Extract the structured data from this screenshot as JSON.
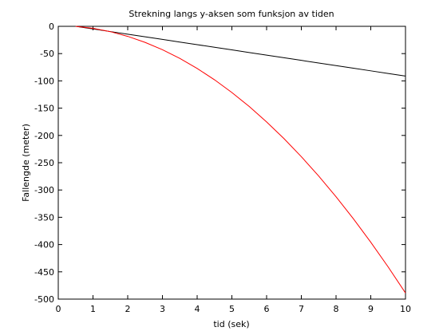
{
  "chart_data": {
    "type": "line",
    "title": "Strekning langs y-aksen som funksjon av tiden",
    "x_label": "tid (sek)",
    "y_label": "Fallengde (meter)",
    "x": [
      0.5,
      1,
      1.5,
      2,
      2.5,
      3,
      3.5,
      4,
      4.5,
      5,
      5.5,
      6,
      6.5,
      7,
      7.5,
      8,
      8.5,
      9,
      9.5,
      10
    ],
    "series": [
      {
        "color": "#000000",
        "values": [
          0,
          -4.8,
          -9.6,
          -14.4,
          -19.2,
          -24,
          -28.8,
          -33.6,
          -38.4,
          -43.2,
          -48,
          -52.8,
          -57.6,
          -62.4,
          -67.2,
          -72,
          -76.8,
          -81.6,
          -86.4,
          -91.2
        ]
      },
      {
        "color": "#ff0000",
        "values": [
          0,
          -3.7,
          -9.8,
          -18.4,
          -29.4,
          -42.9,
          -58.8,
          -77.2,
          -98,
          -121.3,
          -147,
          -175.2,
          -205.8,
          -238.9,
          -274.4,
          -312.4,
          -352.8,
          -395.7,
          -441,
          -488.8
        ]
      }
    ],
    "xlim": [
      0,
      10
    ],
    "xticks": [
      0,
      1,
      2,
      3,
      4,
      5,
      6,
      7,
      8,
      9,
      10
    ],
    "ylim": [
      -500,
      0
    ],
    "yticks": [
      0,
      -50,
      -100,
      -150,
      -200,
      -250,
      -300,
      -350,
      -400,
      -450,
      -500
    ],
    "grid": false
  }
}
